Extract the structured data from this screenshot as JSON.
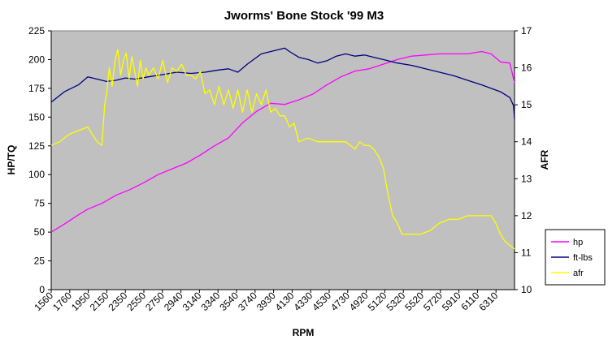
{
  "chart_data": {
    "type": "line",
    "title": "Jworms' Bone Stock '99 M3",
    "xlabel": "RPM",
    "ylabel": "HP/TQ",
    "y2label": "AFR",
    "grid": false,
    "plot_background": "#c0c0c0",
    "legend_position": "right",
    "xlim": [
      1560,
      6500
    ],
    "ylim": [
      0,
      225
    ],
    "y2lim": [
      10,
      17
    ],
    "yticks": [
      "0",
      "25",
      "50",
      "75",
      "100",
      "125",
      "150",
      "175",
      "200",
      "225"
    ],
    "y2ticks": [
      "10",
      "11",
      "12",
      "13",
      "14",
      "15",
      "16",
      "17"
    ],
    "xticks": [
      "1560",
      "1760",
      "1950",
      "2150",
      "2350",
      "2550",
      "2750",
      "2940",
      "3140",
      "3340",
      "3540",
      "3740",
      "3930",
      "4130",
      "4330",
      "4530",
      "4730",
      "4920",
      "5120",
      "5320",
      "5520",
      "5720",
      "5910",
      "6110",
      "6310"
    ],
    "series": [
      {
        "name": "hp",
        "axis": "left",
        "color": "#ff00ff",
        "x": [
          1560,
          1700,
          1850,
          1950,
          2100,
          2250,
          2400,
          2550,
          2700,
          2850,
          3000,
          3150,
          3300,
          3450,
          3600,
          3750,
          3900,
          4050,
          4200,
          4350,
          4500,
          4650,
          4800,
          4950,
          5100,
          5250,
          5400,
          5550,
          5700,
          5850,
          6000,
          6150,
          6250,
          6350,
          6450,
          6500
        ],
        "values": [
          50,
          57,
          65,
          70,
          75,
          82,
          87,
          93,
          100,
          105,
          110,
          117,
          125,
          132,
          145,
          155,
          162,
          161,
          165,
          170,
          178,
          185,
          190,
          192,
          196,
          200,
          203,
          204,
          205,
          205,
          205,
          207,
          205,
          198,
          197,
          180
        ]
      },
      {
        "name": "ft-lbs",
        "axis": "left",
        "color": "#000080",
        "x": [
          1560,
          1700,
          1850,
          1950,
          2050,
          2150,
          2250,
          2350,
          2450,
          2600,
          2750,
          2900,
          3050,
          3200,
          3350,
          3450,
          3550,
          3650,
          3800,
          3950,
          4050,
          4100,
          4200,
          4300,
          4400,
          4500,
          4600,
          4700,
          4800,
          4900,
          5000,
          5100,
          5250,
          5400,
          5550,
          5700,
          5850,
          6000,
          6150,
          6250,
          6350,
          6450,
          6490,
          6500
        ],
        "values": [
          163,
          172,
          178,
          185,
          183,
          181,
          182,
          184,
          183,
          185,
          187,
          189,
          188,
          189,
          191,
          192,
          189,
          196,
          205,
          208,
          210,
          207,
          202,
          200,
          197,
          199,
          203,
          205,
          203,
          204,
          202,
          200,
          197,
          195,
          192,
          189,
          186,
          182,
          178,
          175,
          172,
          167,
          160,
          148
        ]
      },
      {
        "name": "afr",
        "axis": "right",
        "color": "#ffff00",
        "x": [
          1560,
          1650,
          1750,
          1850,
          1950,
          2050,
          2100,
          2130,
          2150,
          2180,
          2210,
          2240,
          2270,
          2300,
          2330,
          2360,
          2390,
          2420,
          2450,
          2480,
          2510,
          2540,
          2570,
          2600,
          2650,
          2700,
          2750,
          2800,
          2850,
          2900,
          2950,
          3000,
          3050,
          3100,
          3150,
          3200,
          3250,
          3300,
          3350,
          3400,
          3450,
          3500,
          3550,
          3600,
          3650,
          3700,
          3750,
          3800,
          3850,
          3900,
          3950,
          4000,
          4050,
          4100,
          4150,
          4200,
          4300,
          4400,
          4500,
          4600,
          4700,
          4800,
          4850,
          4900,
          4950,
          5000,
          5050,
          5100,
          5150,
          5200,
          5250,
          5300,
          5400,
          5500,
          5600,
          5700,
          5800,
          5900,
          6000,
          6100,
          6200,
          6250,
          6300,
          6350,
          6400,
          6450,
          6500
        ],
        "values": [
          13.9,
          14.0,
          14.2,
          14.3,
          14.4,
          14.0,
          13.9,
          15.0,
          15.3,
          16.0,
          15.5,
          16.2,
          16.5,
          15.8,
          16.2,
          16.4,
          15.7,
          16.3,
          15.9,
          15.5,
          16.2,
          15.7,
          16.0,
          15.8,
          16.0,
          15.7,
          16.2,
          15.6,
          16.0,
          15.9,
          16.1,
          15.8,
          15.8,
          15.7,
          15.9,
          15.3,
          15.4,
          15.0,
          15.5,
          15.0,
          15.4,
          14.9,
          15.4,
          14.8,
          15.4,
          14.8,
          15.3,
          15.0,
          15.4,
          14.8,
          14.9,
          14.7,
          14.7,
          14.4,
          14.5,
          14.0,
          14.1,
          14.0,
          14.0,
          14.0,
          14.0,
          13.8,
          14.0,
          13.9,
          13.9,
          13.8,
          13.6,
          13.3,
          12.6,
          12.0,
          11.8,
          11.5,
          11.5,
          11.5,
          11.6,
          11.8,
          11.9,
          11.9,
          12.0,
          12.0,
          12.0,
          12.0,
          11.8,
          11.5,
          11.3,
          11.2,
          11.1
        ]
      }
    ]
  }
}
